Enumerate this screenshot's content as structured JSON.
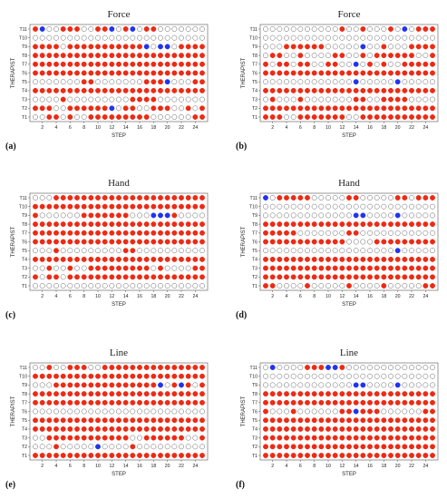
{
  "chart_data": [
    {
      "type": "scatter",
      "panel_label": "(a)",
      "title": "Force",
      "xlabel": "STEP",
      "ylabel": "THERAPIST",
      "xticks": [
        2,
        4,
        6,
        8,
        10,
        12,
        14,
        16,
        18,
        20,
        22,
        24
      ],
      "yticks": [
        "T1",
        "T2",
        "T3",
        "T4",
        "T5",
        "T6",
        "T7",
        "T8",
        "T9",
        "T10",
        "T11"
      ],
      "xlim": [
        1,
        25
      ],
      "legend": "none",
      "point_states": {
        "R": "red filled",
        "B": "blue filled",
        "O": "open circle"
      },
      "colors": {
        "R": "#ee2a14",
        "B": "#2233ee",
        "O": "#ffffff"
      },
      "rows": {
        "T11": "RBOORRROORRBORBORROOOOOOO",
        "T10": "OOOOOOOOOOOOOOOOOOOOOOOOO",
        "T9": "RRRRORRRRRRRRRRRBOBBORRRR",
        "T8": "RRRRRRRRRRRRRRRRRRRRRRRRR",
        "T7": "RRRRRRRRRRRRRRRRRRRRRRRRR",
        "T6": "RRRRRRRRRRRRRRRRRRRRRRRRR",
        "T5": "OOOOOOORROOOOOOORRRBOOORR",
        "T4": "RRRRRRRRRRRRRRRRRRRRRRRRR",
        "T3": "OOOOROOOOOOOOORRRROOOOOOO",
        "T2": "RRROORRRRRRBORROORRROOROR",
        "T1": "OORROROORRRRRRRRROOOOOORR"
      }
    },
    {
      "type": "scatter",
      "panel_label": "(b)",
      "title": "Force",
      "xlabel": "STEP",
      "ylabel": "THERAPIST",
      "xticks": [
        2,
        4,
        6,
        8,
        10,
        12,
        14,
        16,
        18,
        20,
        22,
        24
      ],
      "yticks": [
        "T1",
        "T2",
        "T3",
        "T4",
        "T5",
        "T6",
        "T7",
        "T8",
        "T9",
        "T10",
        "T11"
      ],
      "xlim": [
        1,
        25
      ],
      "legend": "none",
      "point_states": {
        "R": "red filled",
        "B": "blue filled",
        "O": "open circle"
      },
      "colors": {
        "R": "#ee2a14",
        "B": "#2233ee",
        "O": "#ffffff"
      },
      "rows": {
        "T11": "OOOOOOOOOOOROOROOOROBORRR",
        "T10": "OOOOOOOOOOOOOOOOOOOOOOOOO",
        "T9": "OOORRRRRROOOOOBOOROOORRRR",
        "T8": "ORROOROOOORROORORRRRRROOR",
        "T7": "RORRORROORROOBOROROORRRRR",
        "T6": "RRRRRRRRRRRRRRRRRRRRRRRRR",
        "T5": "OOOOOOOOOOOOOBOOOOOBOOOOO",
        "T4": "RRRRRRRRRRRRRRRRRRRRRRRRR",
        "T3": "OROOOROOOOOOORROORRRROOOO",
        "T2": "RRRRRRRRRRRRRRRRRRRRRRRRR",
        "T1": "RRROORRRRRRROORRRRRRRRRRR"
      }
    },
    {
      "type": "scatter",
      "panel_label": "(c)",
      "title": "Hand",
      "xlabel": "STEP",
      "ylabel": "THERAPIST",
      "xticks": [
        2,
        4,
        6,
        8,
        10,
        12,
        14,
        16,
        18,
        20,
        22,
        24
      ],
      "yticks": [
        "T1",
        "T2",
        "T3",
        "T4",
        "T5",
        "T6",
        "T7",
        "T8",
        "T9",
        "T10",
        "T11"
      ],
      "xlim": [
        1,
        25
      ],
      "legend": "none",
      "point_states": {
        "R": "red filled",
        "B": "blue filled",
        "O": "open circle"
      },
      "colors": {
        "R": "#ee2a14",
        "B": "#2233ee",
        "O": "#ffffff"
      },
      "rows": {
        "T11": "OOORRRRRRRRRRRRRRRRRRRRRR",
        "T10": "RRRRRRRRRRRRRRRRRRRRRRRRR",
        "T9": "ROOOOOORRRRRRROOOBBBROOOO",
        "T8": "RRRRRRRRRRRRRRRRRRRRRRRRR",
        "T7": "RRRRRRRRRRRRRRRRRRRRRRRRR",
        "T6": "RRRRRRRRRRRRRRRRRRRRRRRRR",
        "T5": "OOOROOOOOOOOORROOOOOOOOOO",
        "T4": "RRRRRRRRRRRRRRRRRRRRRRRRR",
        "T3": "OOROOROORRRRRRRRROROOOORR",
        "T2": "RORRORRRRRRRRRRRRRRRRRRRR",
        "T1": "OOOOOOOOOOOOOOOOOOOOOOOOO"
      }
    },
    {
      "type": "scatter",
      "panel_label": "(d)",
      "title": "Hand",
      "xlabel": "STEP",
      "ylabel": "THERAPIST",
      "xticks": [
        2,
        4,
        6,
        8,
        10,
        12,
        14,
        16,
        18,
        20,
        22,
        24
      ],
      "yticks": [
        "T1",
        "T2",
        "T3",
        "T4",
        "T5",
        "T6",
        "T7",
        "T8",
        "T9",
        "T10",
        "T11"
      ],
      "xlim": [
        1,
        25
      ],
      "legend": "none",
      "point_states": {
        "R": "red filled",
        "B": "blue filled",
        "O": "open circle"
      },
      "colors": {
        "R": "#ee2a14",
        "B": "#2233ee",
        "O": "#ffffff"
      },
      "rows": {
        "T11": "BORRRRROOOOORROOOOORRORRR",
        "T10": "OOOOOOOOOOOOOOOOOOOOOOOOO",
        "T9": "OOOOOOOOOOOOOBBOOOOBOOOOO",
        "T8": "RRRRRRRRRRRRRRRRRRRRRRRRR",
        "T7": "RRRRROOOOOOORROOOOOOOOOOO",
        "T6": "RRRRRRRRRRRROOOORRRRRRRRR",
        "T5": "OOOOOOOOOOOOOOOOOOOBOOOOO",
        "T4": "RRRRRRRRRRRRRRRRRRRRRRRRR",
        "T3": "RRRRRRRRRRRRRRRRRRRRRRRRR",
        "T2": "RRRRRRRRRRRRRRRRRRRRRRRRR",
        "T1": "RROOOOROOOOOROOOOROOOOORR"
      }
    },
    {
      "type": "scatter",
      "panel_label": "(e)",
      "title": "Line",
      "xlabel": "STEP",
      "ylabel": "THERAPIST",
      "xticks": [
        2,
        4,
        6,
        8,
        10,
        12,
        14,
        16,
        18,
        20,
        22,
        24
      ],
      "yticks": [
        "T1",
        "T2",
        "T3",
        "T4",
        "T5",
        "T6",
        "T7",
        "T8",
        "T9",
        "T10",
        "T11"
      ],
      "xlim": [
        1,
        25
      ],
      "legend": "none",
      "point_states": {
        "R": "red filled",
        "B": "blue filled",
        "O": "open circle"
      },
      "colors": {
        "R": "#ee2a14",
        "B": "#2233ee",
        "O": "#ffffff"
      },
      "rows": {
        "T11": "OOROORRROORRRRRRRRRRRRRRR",
        "T10": "RRRRRRRRRRRRRRRRRRRRRRRRR",
        "T9": "OOORRRRRRRRRRRRRRRBORBROR",
        "T8": "RRRRRRRRRRRRRRRRRRRRRRRRR",
        "T7": "RRRRRRRRRRRRRRRRRRRRRRRRR",
        "T6": "OOOOOOOOOOOOOOOOOOOOOOOOO",
        "T5": "RRRRRRRRRRRRRRRRRRRRRRRRR",
        "T4": "RRRRRRRRRRRRRRRRRRRRRRRRR",
        "T3": "OORRRRRRRRRRRROORRRRRROOR",
        "T2": "OOOROOOOOBOOOOROOOOOOOOOO",
        "T1": "RRRRRRRRRRRRRRRRRRRRRRRRR"
      }
    },
    {
      "type": "scatter",
      "panel_label": "(f)",
      "title": "Line",
      "xlabel": "STEP",
      "ylabel": "THERAPIST",
      "xticks": [
        2,
        4,
        6,
        8,
        10,
        12,
        14,
        16,
        18,
        20,
        22,
        24
      ],
      "yticks": [
        "T1",
        "T2",
        "T3",
        "T4",
        "T5",
        "T6",
        "T7",
        "T8",
        "T9",
        "T10",
        "T11"
      ],
      "xlim": [
        1,
        25
      ],
      "legend": "none",
      "point_states": {
        "R": "red filled",
        "B": "blue filled",
        "O": "open circle"
      },
      "colors": {
        "R": "#ee2a14",
        "B": "#2233ee",
        "O": "#ffffff"
      },
      "rows": {
        "T11": "OBOOOORRRBBROOOOOOOOOOOOO",
        "T10": "OOOOOOOOOOOOOOOOOOOOOOOOO",
        "T9": "OOOOOOOOOOOOOBBOOOOBOOOOO",
        "T8": "RRRRRRRRRRRRRRRRRRRRRRRRR",
        "T7": "RRRRRRRRRRRRRRRRRRRRRRRRR",
        "T6": "ROOOROOOOOORRBRRROOOOOORR",
        "T5": "RRRRRRRRRRRRRRRRRRRRRRRRR",
        "T4": "RRRRRRRRRRRRRRRRRRRRRRRRR",
        "T3": "RRRRRRRRRRRRRRRRRRRRRRRRR",
        "T2": "RRRRRRRRRRRRRRRRRRRRRRRRR",
        "T1": "RRRRRRRRRRRRRRRRRRRRRRRRR"
      }
    }
  ]
}
